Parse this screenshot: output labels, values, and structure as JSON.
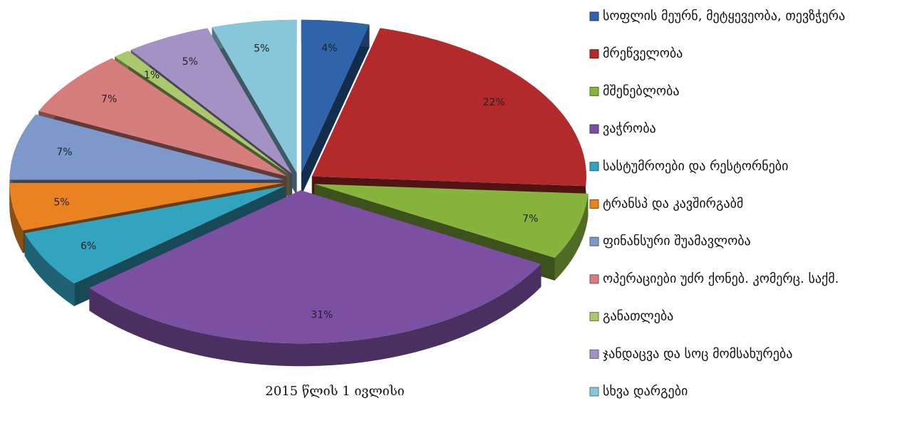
{
  "chart_data": {
    "type": "pie3d",
    "caption": "2015 წლის 1 ივლისი",
    "categories": [
      "სოფლის მეურნ, მეტყევეობა, თევზჭერა",
      "მრეწველობა",
      "მშენებლობა",
      "ვაჭრობა",
      "სასტუმროები და რესტორნები",
      "ტრანსპ და კავშირგაბმ",
      "ფინანსური შუამავლობა",
      "ოპერაციები უძრ ქონებ. კომერც. საქმ.",
      "განათლება",
      "ჯანდაცვა და სოც მომსახურება",
      "სხვა დარგები"
    ],
    "values": [
      4,
      22,
      7,
      31,
      6,
      5,
      7,
      7,
      1,
      5,
      5
    ],
    "value_labels": [
      "4%",
      "22%",
      "7%",
      "31%",
      "6%",
      "5%",
      "7%",
      "7%",
      "1%",
      "5%",
      "5%"
    ],
    "colors": [
      "#2f63aa",
      "#b32a2c",
      "#86b43c",
      "#7b4fa2",
      "#33a4bf",
      "#ea831f",
      "#7d98ca",
      "#d57e7d",
      "#a9c96c",
      "#a592c5",
      "#88c6da"
    ]
  }
}
